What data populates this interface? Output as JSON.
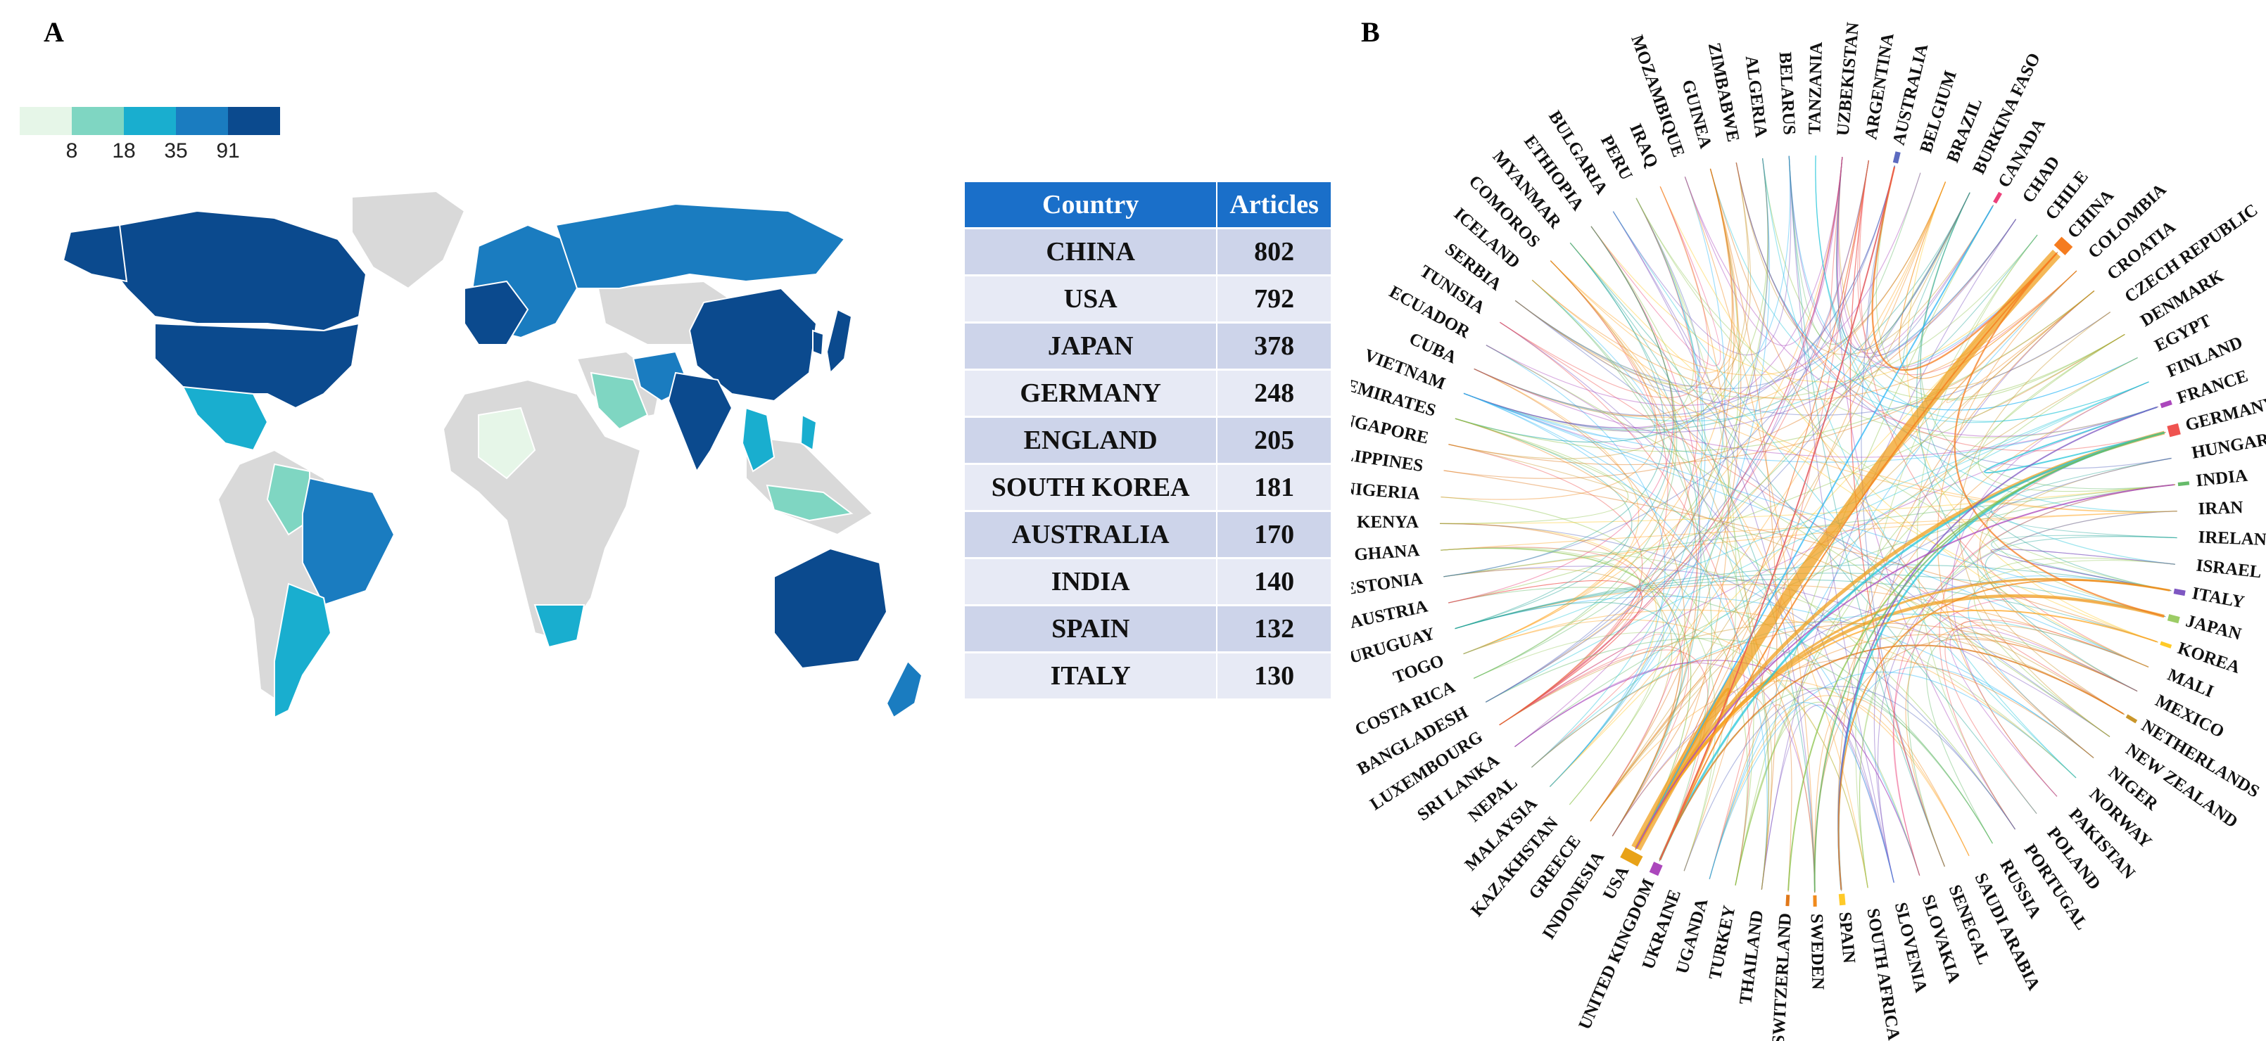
{
  "panels": {
    "a_label": "A",
    "b_label": "B"
  },
  "colors": {
    "scale": [
      "#e6f6e8",
      "#7fd6c2",
      "#19aecf",
      "#1a7cc0",
      "#0b4a8e"
    ],
    "no_data": "#d9d9d9",
    "table_header": "#1a6fc9"
  },
  "legend": {
    "labels": [
      "8",
      "18",
      "35",
      "91"
    ]
  },
  "chart_data": [
    {
      "type": "choropleth",
      "title": "",
      "legend_breaks": [
        8,
        18,
        35,
        91
      ],
      "countries_shaded": [
        "USA",
        "CANADA",
        "CHINA",
        "INDIA",
        "AUSTRALIA",
        "JAPAN",
        "RUSSIA",
        "BRAZIL",
        "MEXICO",
        "ARGENTINA",
        "PERU",
        "SOUTH AFRICA",
        "NEW ZEALAND",
        "EUROPE",
        "IRAN",
        "SAUDI ARABIA",
        "KOREA",
        "VIETNAM",
        "THAILAND",
        "MALAYSIA",
        "INDONESIA",
        "PHILIPPINES"
      ]
    },
    {
      "type": "table",
      "columns": [
        "Country",
        "Articles"
      ],
      "rows": [
        {
          "country": "CHINA",
          "articles": "802"
        },
        {
          "country": "USA",
          "articles": "792"
        },
        {
          "country": "JAPAN",
          "articles": "378"
        },
        {
          "country": "GERMANY",
          "articles": "248"
        },
        {
          "country": "ENGLAND",
          "articles": "205"
        },
        {
          "country": "SOUTH KOREA",
          "articles": "181"
        },
        {
          "country": "AUSTRALIA",
          "articles": "170"
        },
        {
          "country": "INDIA",
          "articles": "140"
        },
        {
          "country": "SPAIN",
          "articles": "132"
        },
        {
          "country": "ITALY",
          "articles": "130"
        }
      ]
    },
    {
      "type": "chord",
      "title": "",
      "countries": [
        "USA",
        "INDONESIA",
        "GREECE",
        "KAZAKHSTAN",
        "MALAYSIA",
        "NEPAL",
        "SRI LANKA",
        "LUXEMBOURG",
        "BANGLADESH",
        "COSTA RICA",
        "TOGO",
        "URUGUAY",
        "AUSTRIA",
        "ESTONIA",
        "GHANA",
        "KENYA",
        "NIGERIA",
        "PHILIPPINES",
        "SINGAPORE",
        "U ARAB EMIRATES",
        "VIETNAM",
        "CUBA",
        "ECUADOR",
        "TUNISIA",
        "SERBIA",
        "ICELAND",
        "COMOROS",
        "MYANMAR",
        "ETHIOPIA",
        "BULGARIA",
        "PERU",
        "IRAQ",
        "MOZAMBIQUE",
        "GUINEA",
        "ZIMBABWE",
        "ALGERIA",
        "BELARUS",
        "TANZANIA",
        "UZBEKISTAN",
        "ARGENTINA",
        "AUSTRALIA",
        "BELGIUM",
        "BRAZIL",
        "BURKINA FASO",
        "CANADA",
        "CHAD",
        "CHILE",
        "CHINA",
        "COLOMBIA",
        "CROATIA",
        "CZECH REPUBLIC",
        "DENMARK",
        "EGYPT",
        "FINLAND",
        "FRANCE",
        "GERMANY",
        "HUNGARY",
        "INDIA",
        "IRAN",
        "IRELAND",
        "ISRAEL",
        "ITALY",
        "JAPAN",
        "KOREA",
        "MALI",
        "MEXICO",
        "NETHERLANDS",
        "NEW ZEALAND",
        "NIGER",
        "NORWAY",
        "PAKISTAN",
        "POLAND",
        "PORTUGAL",
        "RUSSIA",
        "SAUDI ARABIA",
        "SENEGAL",
        "SLOVAKIA",
        "SLOVENIA",
        "SOUTH AFRICA",
        "SPAIN",
        "SWEDEN",
        "SWITZERLAND",
        "THAILAND",
        "TURKEY",
        "UGANDA",
        "UKRAINE",
        "UNITED KINGDOM"
      ],
      "major_links": [
        {
          "from": "USA",
          "to": "CHINA",
          "weight": 60
        },
        {
          "from": "USA",
          "to": "GERMANY",
          "weight": 20
        },
        {
          "from": "USA",
          "to": "JAPAN",
          "weight": 18
        },
        {
          "from": "USA",
          "to": "ITALY",
          "weight": 12
        },
        {
          "from": "USA",
          "to": "UNITED KINGDOM",
          "weight": 14
        },
        {
          "from": "GERMANY",
          "to": "UNITED KINGDOM",
          "weight": 12
        },
        {
          "from": "GERMANY",
          "to": "SPAIN",
          "weight": 10
        },
        {
          "from": "CHINA",
          "to": "AUSTRALIA",
          "weight": 10
        },
        {
          "from": "CHINA",
          "to": "JAPAN",
          "weight": 9
        },
        {
          "from": "CHINA",
          "to": "UNITED KINGDOM",
          "weight": 8
        },
        {
          "from": "GERMANY",
          "to": "FRANCE",
          "weight": 8
        },
        {
          "from": "NETHERLANDS",
          "to": "UNITED KINGDOM",
          "weight": 7
        },
        {
          "from": "CANADA",
          "to": "USA",
          "weight": 8
        },
        {
          "from": "AUSTRALIA",
          "to": "UNITED KINGDOM",
          "weight": 7
        },
        {
          "from": "KOREA",
          "to": "USA",
          "weight": 7
        },
        {
          "from": "FRANCE",
          "to": "SPAIN",
          "weight": 6
        },
        {
          "from": "ITALY",
          "to": "SPAIN",
          "weight": 6
        },
        {
          "from": "SWITZERLAND",
          "to": "GERMANY",
          "weight": 5
        },
        {
          "from": "INDIA",
          "to": "USA",
          "weight": 6
        },
        {
          "from": "SWEDEN",
          "to": "GERMANY",
          "weight": 5
        }
      ]
    }
  ]
}
